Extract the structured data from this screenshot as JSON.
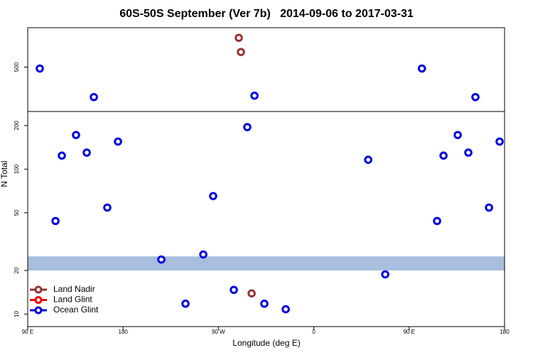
{
  "chart_data": {
    "type": "scatter",
    "title": "60S-50S September (Ver 7b)   2014-09-06 to 2017-03-31",
    "xlabel": "Longitude (deg E)",
    "ylabel": "N Total",
    "xlim": [
      90,
      540
    ],
    "xticks": [
      {
        "value": 90,
        "label": "90 E"
      },
      {
        "value": 180,
        "label": "180"
      },
      {
        "value": 270,
        "label": "90 W"
      },
      {
        "value": 360,
        "label": "0"
      },
      {
        "value": 450,
        "label": "90 E"
      },
      {
        "value": 540,
        "label": "180"
      }
    ],
    "panels": [
      {
        "ylim": [
          250,
          722
        ],
        "yticks": [
          500
        ],
        "log": false
      },
      {
        "ylim": [
          8.2,
          250
        ],
        "yticks": [
          10,
          20,
          50,
          100,
          200
        ],
        "log": true
      }
    ],
    "band": {
      "range": [
        20,
        25
      ],
      "color": "#a7bedd"
    },
    "legend": "lower left",
    "series": [
      {
        "name": "Land Nadir",
        "color": "#993333",
        "x": [
          289.2,
          291.2,
          301.3
        ],
        "values": [
          665,
          585,
          13.9
        ]
      },
      {
        "name": "Land Glint",
        "color": "#ee0000",
        "x": [],
        "values": []
      },
      {
        "name": "Ocean Glint",
        "color": "#0000dd",
        "x": [
          101.4,
          152.4,
          304,
          462,
          512.5,
          122.2,
          135.6,
          145.7,
          175.2,
          116.2,
          165.1,
          297.2,
          265,
          255.7,
          216.1,
          238.9,
          284.5,
          313.3,
          333.5,
          411.3,
          427.4,
          476.3,
          482.4,
          495.8,
          505.8,
          535.3,
          525.3
        ],
        "values": [
          492,
          331,
          339,
          492,
          331,
          124,
          172,
          130,
          155,
          43.9,
          54.3,
          195,
          65.2,
          25.8,
          23.8,
          11.8,
          14.7,
          11.8,
          10.8,
          116,
          18.8,
          43.9,
          124,
          172,
          130,
          155,
          54.3
        ]
      }
    ]
  }
}
